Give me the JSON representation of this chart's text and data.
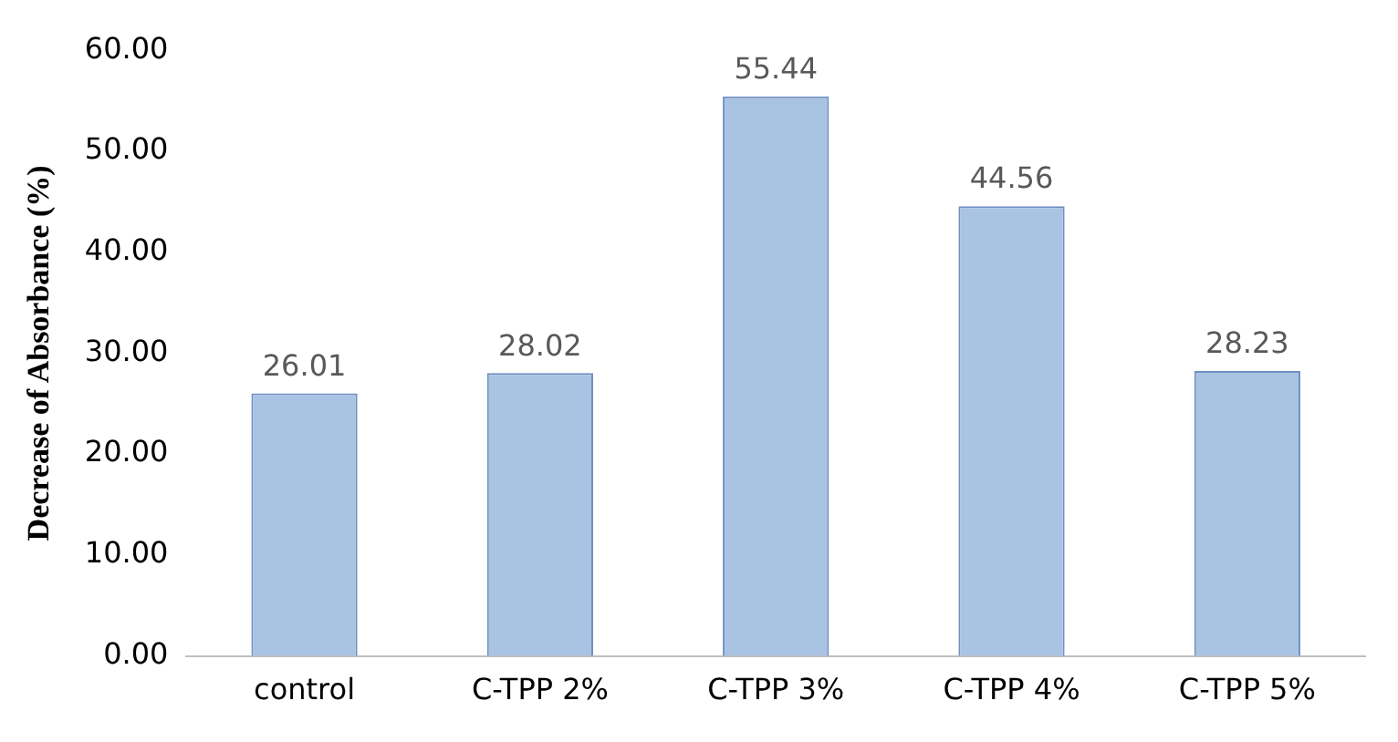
{
  "chart_data": {
    "type": "bar",
    "ylabel": "Decrease of Absorbance (%)",
    "categories": [
      "control",
      "C-TPP 2%",
      "C-TPP 3%",
      "C-TPP 4%",
      "C-TPP 5%"
    ],
    "values": [
      26.01,
      28.02,
      55.44,
      44.56,
      28.23
    ],
    "color": "#a9c3e3",
    "ylim": [
      0,
      60
    ],
    "yticks": [
      {
        "value": 0,
        "label": "0.00"
      },
      {
        "value": 10,
        "label": "10.00"
      },
      {
        "value": 20,
        "label": "20.00"
      },
      {
        "value": 30,
        "label": "30.00"
      },
      {
        "value": 40,
        "label": "40.00"
      },
      {
        "value": 50,
        "label": "50.00"
      },
      {
        "value": 60,
        "label": "60.00"
      }
    ],
    "grid": false,
    "legend": false,
    "data_labels": true
  }
}
